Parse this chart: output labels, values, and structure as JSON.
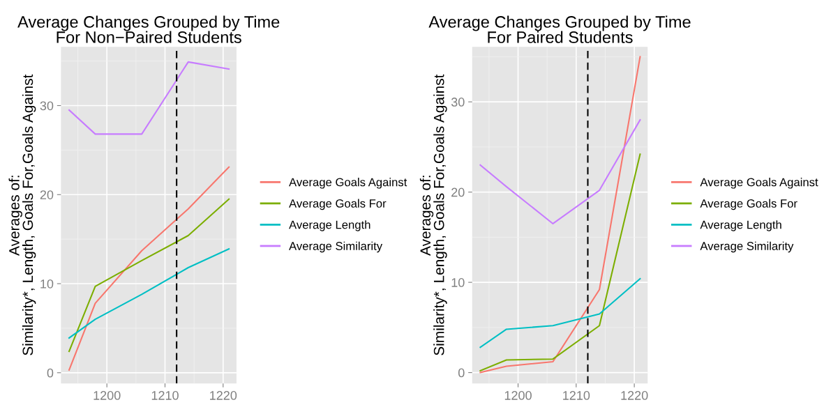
{
  "chart_data": [
    {
      "type": "line",
      "title": "Average Changes Grouped by Time\nFor Non−Paired Students",
      "ylabel": "Averages of:\nSimilarity*, Length, Goals For,Goals Against",
      "x": [
        1193.5,
        1198,
        1206,
        1214,
        1221
      ],
      "xlim": [
        1192.1,
        1222.3
      ],
      "xticks": [
        1200,
        1210,
        1220
      ],
      "ylim": [
        -1.2,
        36.6
      ],
      "yticks": [
        0,
        10,
        20,
        30
      ],
      "grid": true,
      "legend": "right",
      "line_style": "solid",
      "ref_lines": [
        {
          "axis": "x",
          "value": 1212,
          "line_style": "dashed",
          "color": "#000000"
        }
      ],
      "series": [
        {
          "name": "Average Goals Against",
          "color": "#f8766d",
          "values": [
            0.3,
            7.8,
            13.7,
            18.4,
            23.1
          ]
        },
        {
          "name": "Average Goals For",
          "color": "#7cae00",
          "values": [
            2.4,
            9.7,
            12.6,
            15.4,
            19.5
          ]
        },
        {
          "name": "Average Length",
          "color": "#00bfc4",
          "values": [
            3.9,
            6.0,
            8.8,
            11.8,
            13.9
          ]
        },
        {
          "name": "Average Similarity",
          "color": "#c77cff",
          "values": [
            29.5,
            26.8,
            26.8,
            34.9,
            34.1
          ]
        }
      ]
    },
    {
      "type": "line",
      "title": "Average Changes Grouped by Time\nFor Paired Students",
      "ylabel": "Averages of:\nSimilarity*, Length, Goals For,Goals Against",
      "x": [
        1193.5,
        1198,
        1206,
        1214,
        1221
      ],
      "xlim": [
        1192.1,
        1222.3
      ],
      "xticks": [
        1200,
        1210,
        1220
      ],
      "ylim": [
        -1.2,
        36.1
      ],
      "yticks": [
        0,
        10,
        20,
        30
      ],
      "grid": true,
      "legend": "right",
      "line_style": "solid",
      "ref_lines": [
        {
          "axis": "x",
          "value": 1212,
          "line_style": "dashed",
          "color": "#000000"
        }
      ],
      "series": [
        {
          "name": "Average Goals Against",
          "color": "#f8766d",
          "values": [
            0.0,
            0.7,
            1.2,
            9.2,
            35.0
          ]
        },
        {
          "name": "Average Goals For",
          "color": "#7cae00",
          "values": [
            0.2,
            1.4,
            1.5,
            5.2,
            24.2
          ]
        },
        {
          "name": "Average Length",
          "color": "#00bfc4",
          "values": [
            2.8,
            4.8,
            5.2,
            6.5,
            10.4
          ]
        },
        {
          "name": "Average Similarity",
          "color": "#c77cff",
          "values": [
            23.0,
            20.6,
            16.5,
            20.2,
            28.0
          ]
        }
      ]
    }
  ]
}
